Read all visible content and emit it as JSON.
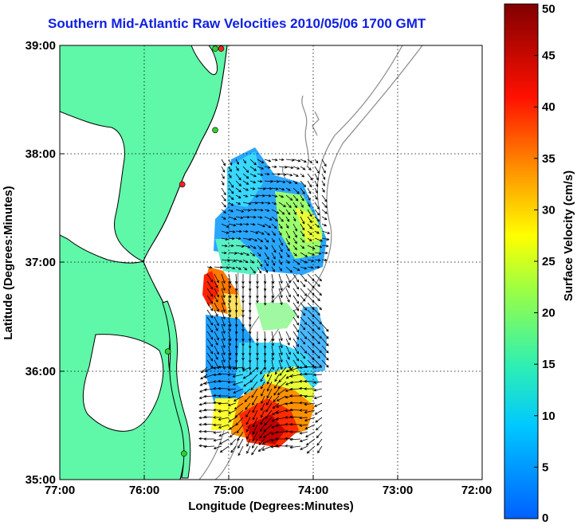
{
  "title": "Southern Mid-Atlantic Raw Velocities 2010/05/06 1700 GMT",
  "xlabel": "Longitude (Degrees:Minutes)",
  "ylabel": "Latitude (Degrees:Minutes)",
  "colorbar": {
    "label": "Surface Velocity (cm/s)",
    "units": "cm/s",
    "range": [
      0,
      50
    ],
    "ticks": [
      "0",
      "5",
      "10",
      "15",
      "20",
      "25",
      "30",
      "35",
      "40",
      "45",
      "50"
    ]
  },
  "x_ticks": [
    "77:00",
    "76:00",
    "75:00",
    "74:00",
    "73:00",
    "72:00"
  ],
  "y_ticks": [
    "39:00",
    "38:00",
    "37:00",
    "36:00",
    "35:00"
  ],
  "extent": {
    "lon": [
      -77,
      -72
    ],
    "lat": [
      35,
      39
    ]
  },
  "colors": {
    "land": "#5ff7a8",
    "water": "#ffffff",
    "coastline": "#000000",
    "bathymetry": "#8a8a8a",
    "grid": "#000000",
    "title": "#1020e0"
  },
  "radar_sites": [
    {
      "lon": -75.09,
      "lat": 38.97,
      "color": "#ff2020"
    },
    {
      "lon": -75.16,
      "lat": 38.97,
      "color": "#30d030"
    },
    {
      "lon": -75.16,
      "lat": 38.22,
      "color": "#30d030"
    },
    {
      "lon": -75.55,
      "lat": 37.72,
      "color": "#ff2020"
    },
    {
      "lon": -75.72,
      "lat": 36.18,
      "color": "#30d030"
    },
    {
      "lon": -75.53,
      "lat": 35.24,
      "color": "#30d030"
    }
  ]
}
